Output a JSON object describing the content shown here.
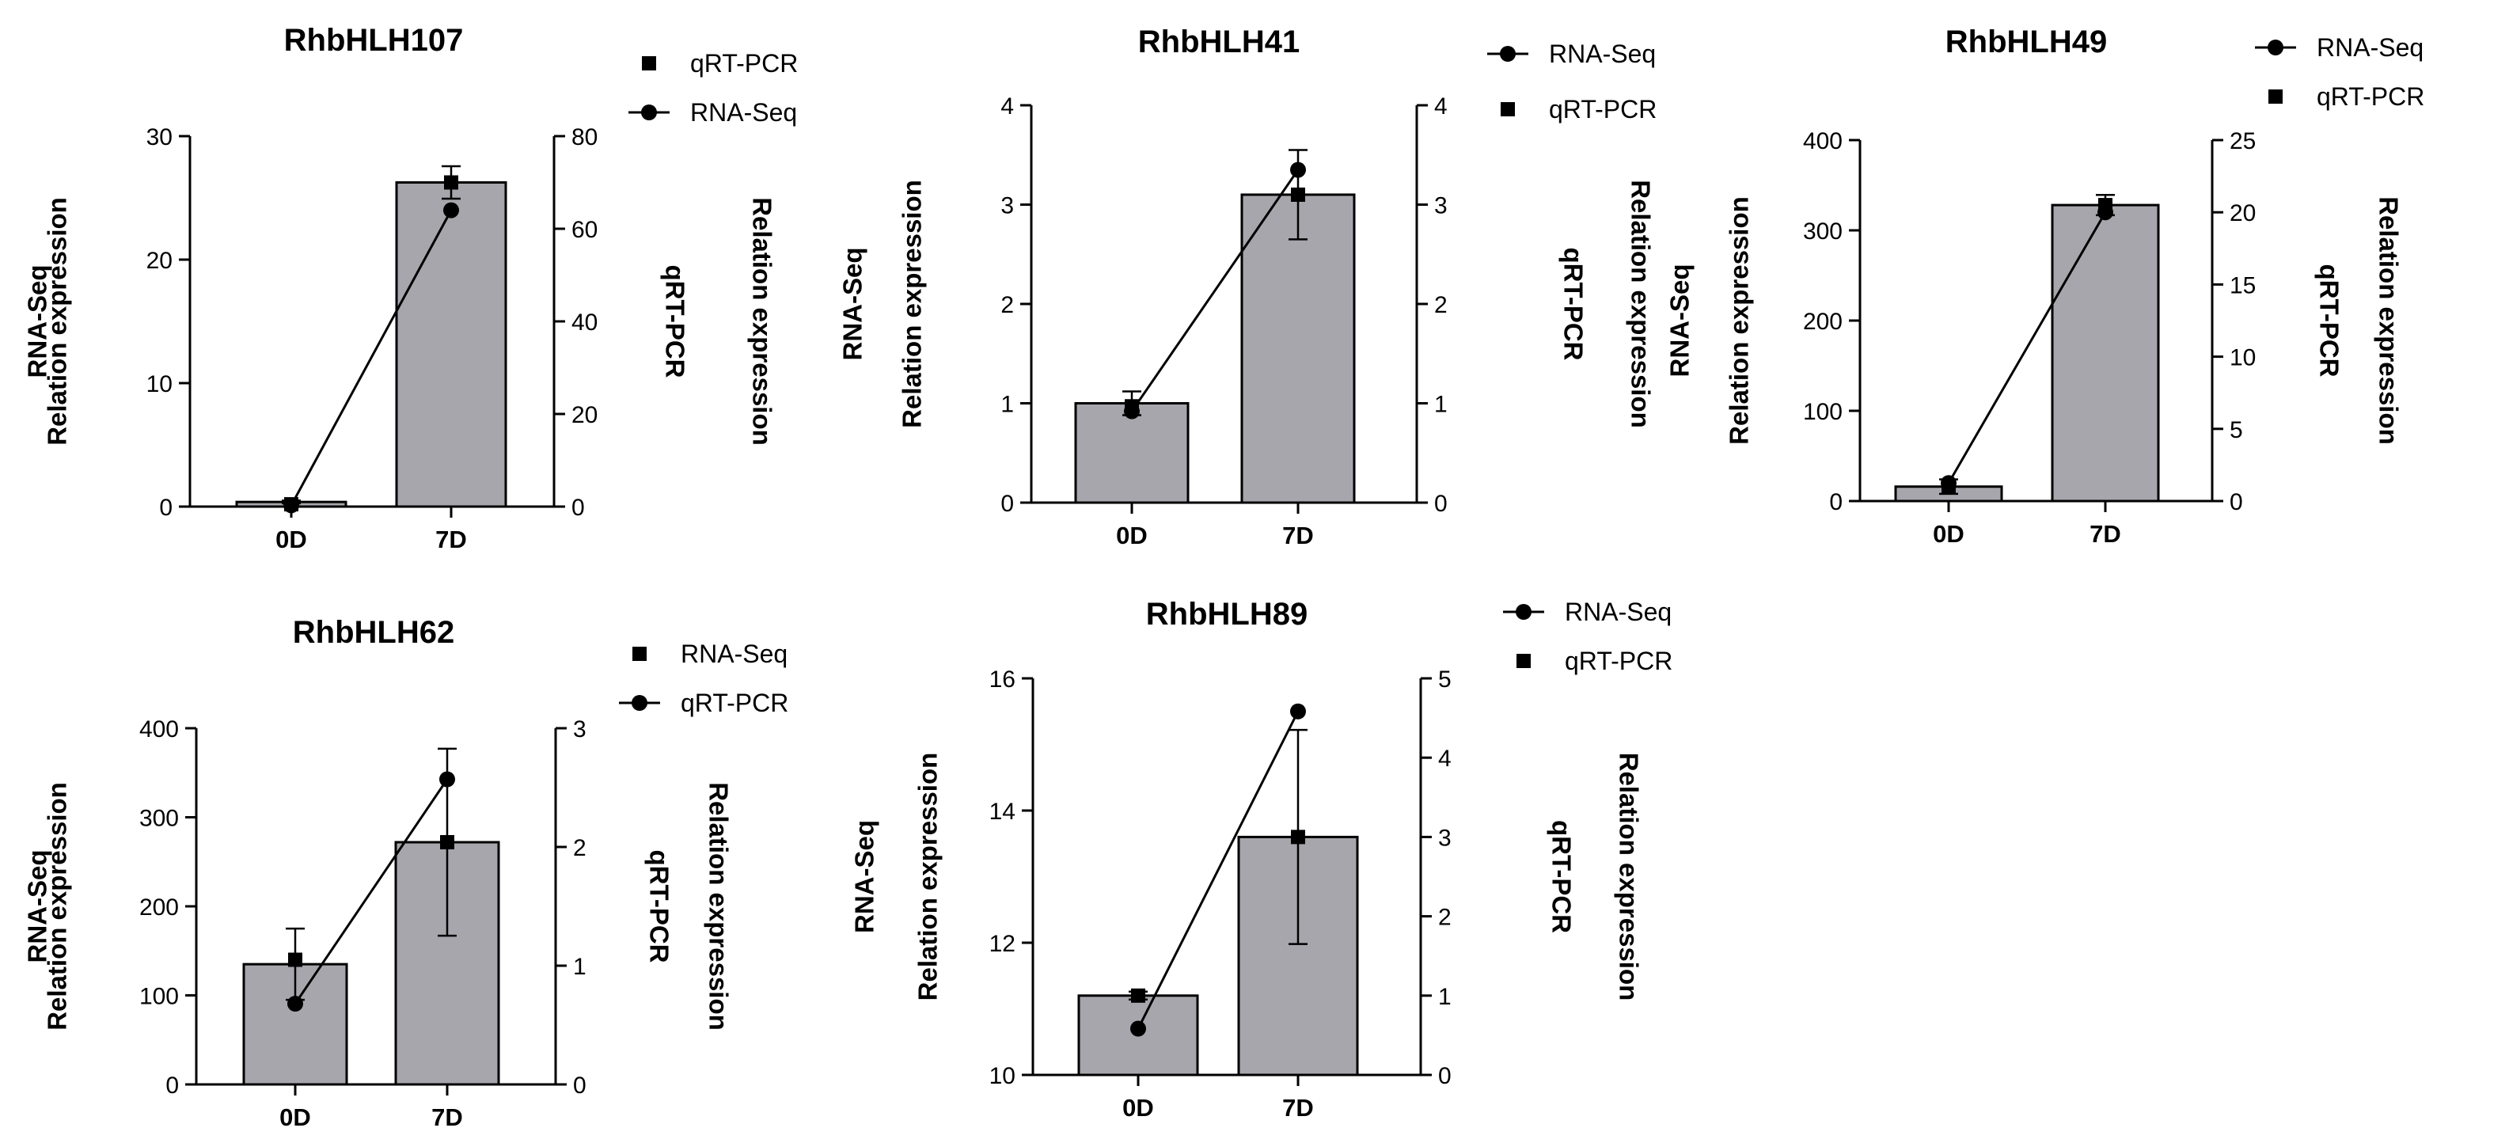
{
  "chart_data": [
    {
      "type": "bar",
      "title": "RhbHLH107",
      "categories": [
        "0D",
        "7D"
      ],
      "left_axis": {
        "label_lines": [
          "RNA-Seq",
          "Relation expression"
        ],
        "ylim": [
          0,
          30
        ],
        "ticks": [
          0,
          10,
          20,
          30
        ]
      },
      "right_axis": {
        "label_lines": [
          "qRT-PCR",
          "Relation expression"
        ],
        "ylim": [
          0,
          80
        ],
        "ticks": [
          0,
          20,
          40,
          60,
          80
        ]
      },
      "legend": [
        {
          "label": "qRT-PCR",
          "marker": "square"
        },
        {
          "label": "RNA-Seq",
          "marker": "circle-line"
        }
      ],
      "series": [
        {
          "name": "qRT-PCR",
          "kind": "bar",
          "axis": "right",
          "values": [
            1.0,
            70.0
          ],
          "errors": [
            0.3,
            3.5
          ],
          "markers": [
            0.5,
            70.0
          ]
        },
        {
          "name": "RNA-Seq",
          "kind": "line",
          "axis": "left",
          "values": [
            0.1,
            24.0
          ]
        }
      ]
    },
    {
      "type": "bar",
      "title": "RhbHLH41",
      "categories": [
        "0D",
        "7D"
      ],
      "left_axis": {
        "label_lines": [
          "RNA-Seq",
          "Relation expression"
        ],
        "ylim": [
          0,
          4
        ],
        "ticks": [
          0,
          1,
          2,
          3,
          4
        ]
      },
      "right_axis": {
        "label_lines": [
          "qRT-PCR",
          "Relation expression"
        ],
        "ylim": [
          0,
          4
        ],
        "ticks": [
          0,
          1,
          2,
          3,
          4
        ]
      },
      "legend": [
        {
          "label": "RNA-Seq",
          "marker": "circle-line"
        },
        {
          "label": "qRT-PCR",
          "marker": "square"
        }
      ],
      "series": [
        {
          "name": "qRT-PCR",
          "kind": "bar",
          "axis": "right",
          "values": [
            1.0,
            3.1
          ],
          "errors": [
            0.12,
            0.45
          ],
          "markers": [
            0.97,
            3.1
          ]
        },
        {
          "name": "RNA-Seq",
          "kind": "line",
          "axis": "left",
          "values": [
            0.92,
            3.35
          ]
        }
      ]
    },
    {
      "type": "bar",
      "title": "RhbHLH49",
      "categories": [
        "0D",
        "7D"
      ],
      "left_axis": {
        "label_lines": [
          "RNA-Seq",
          "Relation expression"
        ],
        "ylim": [
          0,
          400
        ],
        "ticks": [
          0,
          100,
          200,
          300,
          400
        ]
      },
      "right_axis": {
        "label_lines": [
          "qRT-PCR",
          "Relation expression"
        ],
        "ylim": [
          0,
          25
        ],
        "ticks": [
          0,
          5,
          10,
          15,
          20,
          25
        ]
      },
      "legend": [
        {
          "label": "RNA-Seq",
          "marker": "circle-line"
        },
        {
          "label": "qRT-PCR",
          "marker": "square"
        }
      ],
      "series": [
        {
          "name": "qRT-PCR",
          "kind": "bar",
          "axis": "right",
          "values": [
            1.0,
            20.5
          ],
          "errors": [
            0.5,
            0.7
          ],
          "markers": [
            1.0,
            20.5
          ]
        },
        {
          "name": "RNA-Seq",
          "kind": "line",
          "axis": "left",
          "values": [
            20,
            320
          ]
        }
      ]
    },
    {
      "type": "bar",
      "title": "RhbHLH62",
      "categories": [
        "0D",
        "7D"
      ],
      "left_axis": {
        "label_lines": [
          "RNA-Seq",
          "Relation expression"
        ],
        "ylim": [
          0,
          400
        ],
        "ticks": [
          0,
          100,
          200,
          300,
          400
        ]
      },
      "right_axis": {
        "label_lines": [
          "qRT-PCR",
          "Relation expression"
        ],
        "ylim": [
          0,
          3
        ],
        "ticks": [
          0,
          1,
          2,
          3
        ]
      },
      "legend": [
        {
          "label": "RNA-Seq",
          "marker": "square"
        },
        {
          "label": "qRT-PCR",
          "marker": "circle-line"
        }
      ],
      "series": [
        {
          "name": "RNA-Seq",
          "kind": "bar",
          "axis": "left",
          "values": [
            135,
            272
          ],
          "errors": [
            40,
            105
          ],
          "markers": [
            140,
            272
          ]
        },
        {
          "name": "qRT-PCR",
          "kind": "line",
          "axis": "right",
          "values": [
            0.68,
            2.57
          ]
        }
      ]
    },
    {
      "type": "bar",
      "title": "RhbHLH89",
      "categories": [
        "0D",
        "7D"
      ],
      "left_axis": {
        "label_lines": [
          "RNA-Seq",
          "Relation expression"
        ],
        "ylim": [
          10,
          16
        ],
        "ticks": [
          10,
          12,
          14,
          16
        ]
      },
      "right_axis": {
        "label_lines": [
          "qRT-PCR",
          "Relation expression"
        ],
        "ylim": [
          0,
          5
        ],
        "ticks": [
          0,
          1,
          2,
          3,
          4,
          5
        ]
      },
      "legend": [
        {
          "label": "RNA-Seq",
          "marker": "circle-line"
        },
        {
          "label": "qRT-PCR",
          "marker": "square"
        }
      ],
      "series": [
        {
          "name": "qRT-PCR",
          "kind": "bar",
          "axis": "right",
          "values": [
            1.0,
            3.0
          ],
          "errors": [
            0.05,
            1.35
          ],
          "markers": [
            1.0,
            3.0
          ]
        },
        {
          "name": "RNA-Seq",
          "kind": "line",
          "axis": "left",
          "values": [
            10.7,
            15.5
          ]
        }
      ]
    }
  ]
}
